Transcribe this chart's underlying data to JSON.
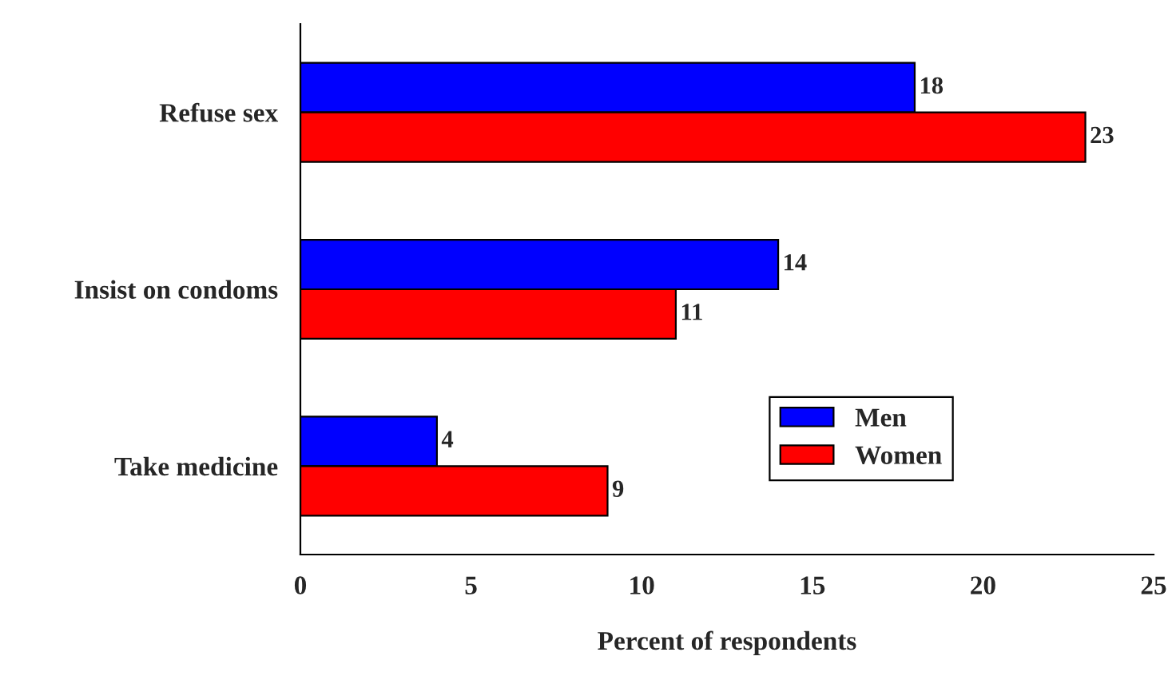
{
  "chart_data": {
    "type": "bar",
    "orientation": "horizontal",
    "xlabel": "Percent of respondents",
    "categories": [
      "Refuse sex",
      "Insist on condoms",
      "Take medicine"
    ],
    "series": [
      {
        "name": "Men",
        "color": "#0000ff",
        "values": [
          18,
          14,
          4
        ]
      },
      {
        "name": "Women",
        "color": "#ff0000",
        "values": [
          23,
          11,
          9
        ]
      }
    ],
    "xlim": [
      0,
      25
    ],
    "xticks": [
      0,
      5,
      10,
      15,
      20,
      25
    ],
    "data_labels": true,
    "legend": "bottom right",
    "grid": false
  }
}
